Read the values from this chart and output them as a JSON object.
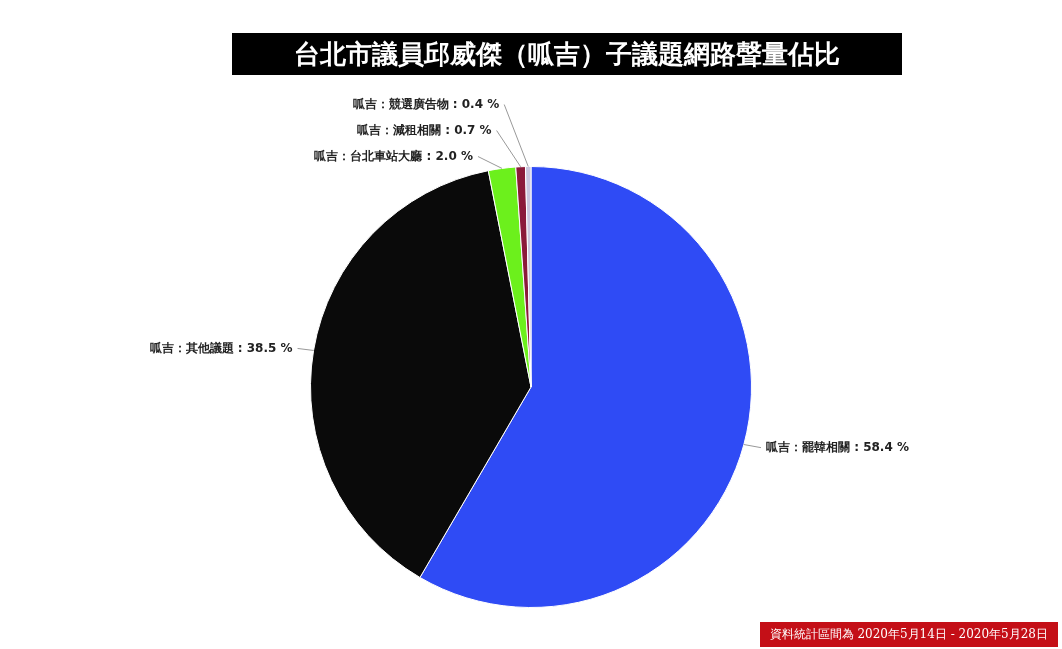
{
  "chart_data": {
    "type": "pie",
    "title": "台北市議員邱威傑（呱吉）子議題網路聲量佔比",
    "categories": [
      "呱吉：罷韓相關",
      "呱吉：其他議題",
      "呱吉：台北車站大廳",
      "呱吉：減租相關",
      "呱吉：競選廣告物"
    ],
    "values": [
      58.4,
      38.5,
      2.0,
      0.7,
      0.4
    ],
    "value_labels": [
      "58.4 %",
      "38.5 %",
      "2.0 %",
      "0.7 %",
      "0.4 %"
    ],
    "colors": [
      "#2f4bf5",
      "#0a0a0a",
      "#6cf01c",
      "#8b1a3a",
      "#c9c6de"
    ],
    "annotations": [
      "資料統計區間為 2020年5月14日 - 2020年5月28日"
    ],
    "legend": false
  }
}
